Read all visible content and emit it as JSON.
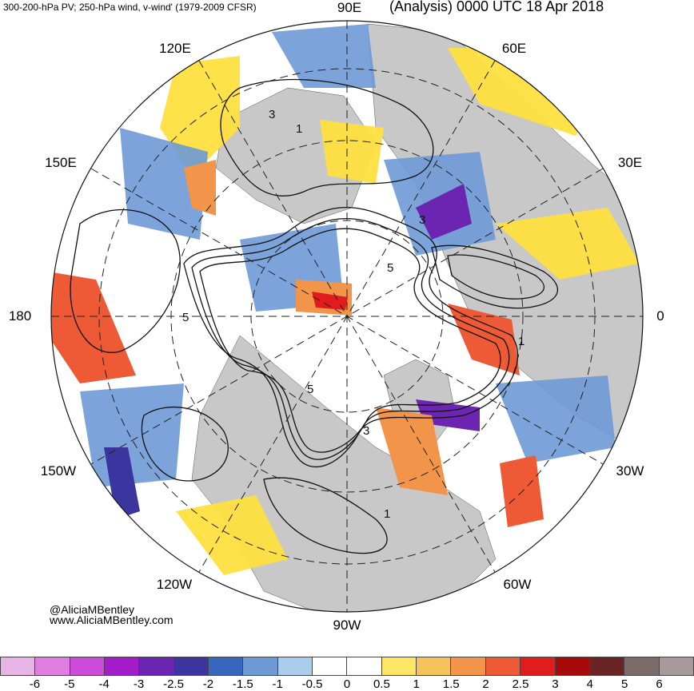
{
  "header": {
    "left_title": "300-200-hPa PV; 250-hPa wind, v-wind' (1979-2009 CFSR)",
    "right_title": "(Analysis) 0000 UTC 18 Apr 2018"
  },
  "map": {
    "projection": "north-polar-stereographic",
    "longitude_labels": [
      "90E",
      "60E",
      "30E",
      "0",
      "30W",
      "60W",
      "90W",
      "120W",
      "150W",
      "180",
      "150E",
      "120E"
    ],
    "contour_labels": [
      "3",
      "1",
      "3",
      "5",
      "5",
      "1",
      "3",
      "1",
      "5"
    ],
    "fill_colors": {
      "land": "#c8c8c8",
      "positive_anomaly": "#ffdf3f",
      "negative_anomaly": "#6e9ad6"
    }
  },
  "credits": {
    "handle": "@AliciaMBentley",
    "website": "www.AliciaMBentley.com"
  },
  "colorbar": {
    "ticks": [
      "-6",
      "-5",
      "-4",
      "-3",
      "-2.5",
      "-2",
      "-1.5",
      "-1",
      "-0.5",
      "0",
      "0.5",
      "1",
      "1.5",
      "2",
      "2.5",
      "3",
      "4",
      "5",
      "6"
    ],
    "colors": [
      "#e7b4e6",
      "#e07fe0",
      "#cc4bd8",
      "#a41cc9",
      "#6c25b0",
      "#3c35a0",
      "#3766be",
      "#6e9ad6",
      "#a9cdeb",
      "#ffffff",
      "#ffffff",
      "#ffe565",
      "#f4c35c",
      "#f2954a",
      "#ee5a35",
      "#e01c1c",
      "#a70a0a",
      "#6b2424",
      "#7d6a6a",
      "#a89a9a"
    ]
  }
}
